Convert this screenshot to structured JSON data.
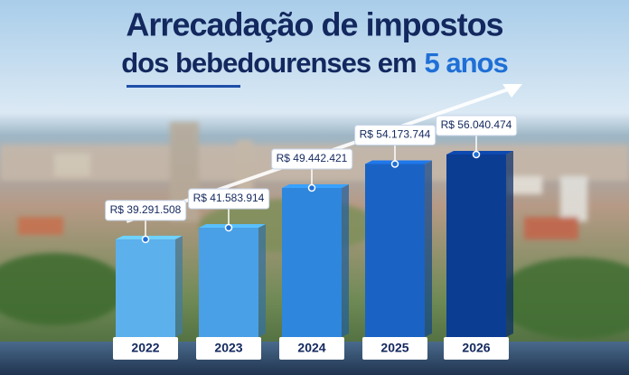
{
  "chart_data": {
    "type": "bar",
    "title": "Arrecadação de impostos",
    "subtitle": "dos bebedourenses em",
    "title_highlight": "5 anos",
    "categories": [
      "2022",
      "2023",
      "2024",
      "2025",
      "2026"
    ],
    "values": [
      39291508,
      41583914,
      49442421,
      54173744,
      56040474
    ],
    "value_labels": [
      "R$ 39.291.508",
      "R$ 41.583.914",
      "R$ 49.442.421",
      "R$ 54.173.744",
      "R$ 56.040.474"
    ],
    "colors": [
      "#5cb0ec",
      "#4aa0e6",
      "#2f86dd",
      "#1a63c4",
      "#0b3d93"
    ],
    "ylim": [
      20000000,
      58000000
    ]
  }
}
